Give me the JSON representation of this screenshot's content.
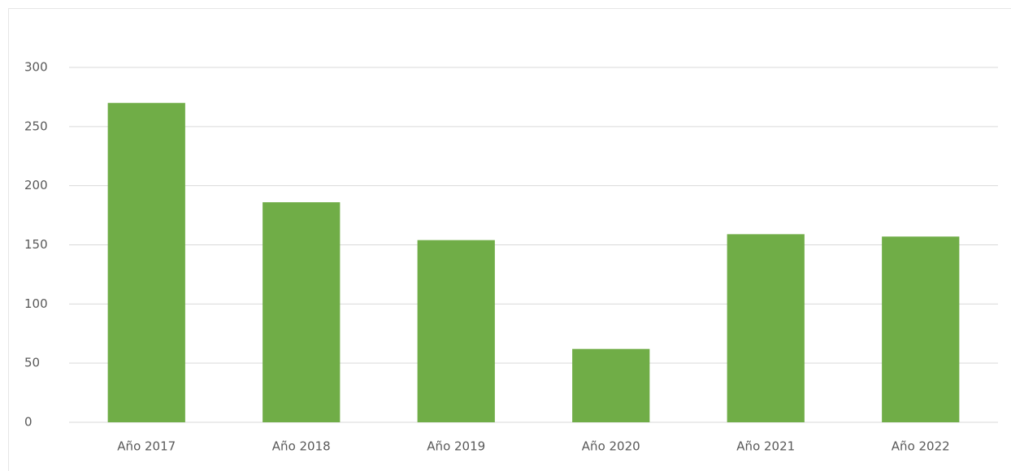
{
  "chart_data": {
    "type": "bar",
    "categories": [
      "Año 2017",
      "Año 2018",
      "Año 2019",
      "Año 2020",
      "Año 2021",
      "Año 2022"
    ],
    "values": [
      270,
      186,
      154,
      62,
      159,
      157
    ],
    "color": "#70ad47",
    "ylim": [
      0,
      300
    ],
    "yticks": [
      0,
      50,
      100,
      150,
      200,
      250,
      300
    ],
    "grid": true
  }
}
